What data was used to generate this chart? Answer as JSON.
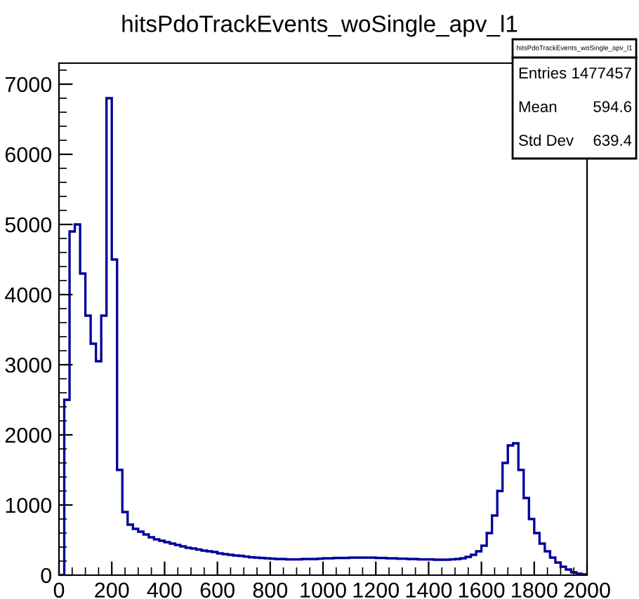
{
  "chart_data": {
    "type": "histogram",
    "title": "hitsPdoTrackEvents_woSingle_apv_l1",
    "bins": [
      0,
      20,
      40,
      60,
      80,
      100,
      120,
      140,
      160,
      180,
      200,
      220,
      240,
      260,
      280,
      300,
      320,
      340,
      360,
      380,
      400,
      420,
      440,
      460,
      480,
      500,
      520,
      540,
      560,
      580,
      600,
      620,
      640,
      660,
      680,
      700,
      720,
      740,
      760,
      780,
      800,
      820,
      840,
      860,
      880,
      900,
      920,
      940,
      960,
      980,
      1000,
      1020,
      1040,
      1060,
      1080,
      1100,
      1120,
      1140,
      1160,
      1180,
      1200,
      1220,
      1240,
      1260,
      1280,
      1300,
      1320,
      1340,
      1360,
      1380,
      1400,
      1420,
      1440,
      1460,
      1480,
      1500,
      1520,
      1540,
      1560,
      1580,
      1600,
      1620,
      1640,
      1660,
      1680,
      1700,
      1720,
      1740,
      1760,
      1780,
      1800,
      1820,
      1840,
      1860,
      1880,
      1900,
      1920,
      1940,
      1960,
      1980,
      2000
    ],
    "values": [
      0,
      2500,
      4900,
      5000,
      4300,
      3700,
      3300,
      3050,
      3700,
      6800,
      4500,
      1500,
      900,
      720,
      660,
      620,
      580,
      540,
      510,
      490,
      470,
      450,
      430,
      410,
      390,
      380,
      365,
      350,
      340,
      330,
      310,
      300,
      290,
      280,
      275,
      265,
      255,
      250,
      245,
      240,
      235,
      230,
      230,
      225,
      225,
      225,
      230,
      230,
      230,
      235,
      240,
      240,
      245,
      245,
      245,
      250,
      250,
      250,
      250,
      250,
      245,
      245,
      240,
      240,
      235,
      235,
      230,
      230,
      225,
      225,
      225,
      220,
      220,
      220,
      225,
      230,
      240,
      260,
      290,
      340,
      420,
      600,
      850,
      1200,
      1600,
      1850,
      1880,
      1500,
      1100,
      800,
      600,
      450,
      340,
      250,
      180,
      120,
      80,
      40,
      20,
      10
    ],
    "color": "#000099",
    "xlim": [
      0,
      2000
    ],
    "xticks": [
      0,
      200,
      400,
      600,
      800,
      1000,
      1200,
      1400,
      1600,
      1800,
      2000
    ],
    "ylim": [
      0,
      7300
    ],
    "yticks": [
      0,
      1000,
      2000,
      3000,
      4000,
      5000,
      6000,
      7000
    ],
    "grid": false,
    "legend": false,
    "annotations": [
      "hitsPdoTrackEvents_woSingle_apv_l1",
      "Entries",
      "1477457",
      "Mean",
      "594.6",
      "Std Dev",
      "639.4"
    ]
  }
}
